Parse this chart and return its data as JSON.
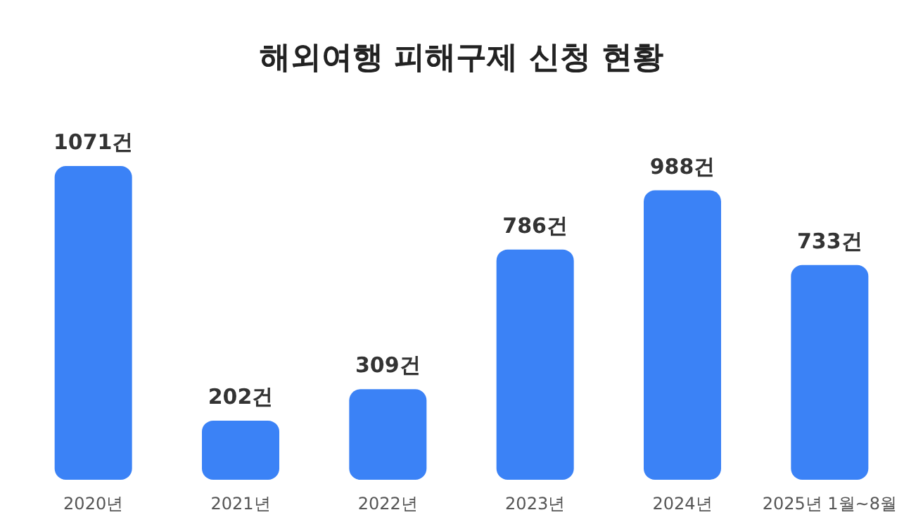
{
  "chart_data": {
    "type": "bar",
    "title": "해외여행 피해구제 신청 현황",
    "categories": [
      "2020년",
      "2021년",
      "2022년",
      "2023년",
      "2024년",
      "2025년 1월~8월"
    ],
    "values": [
      1071,
      202,
      309,
      786,
      988,
      733
    ],
    "value_labels": [
      "1071건",
      "202건",
      "309건",
      "786건",
      "988건",
      "733건"
    ],
    "color": "#3b82f6"
  }
}
